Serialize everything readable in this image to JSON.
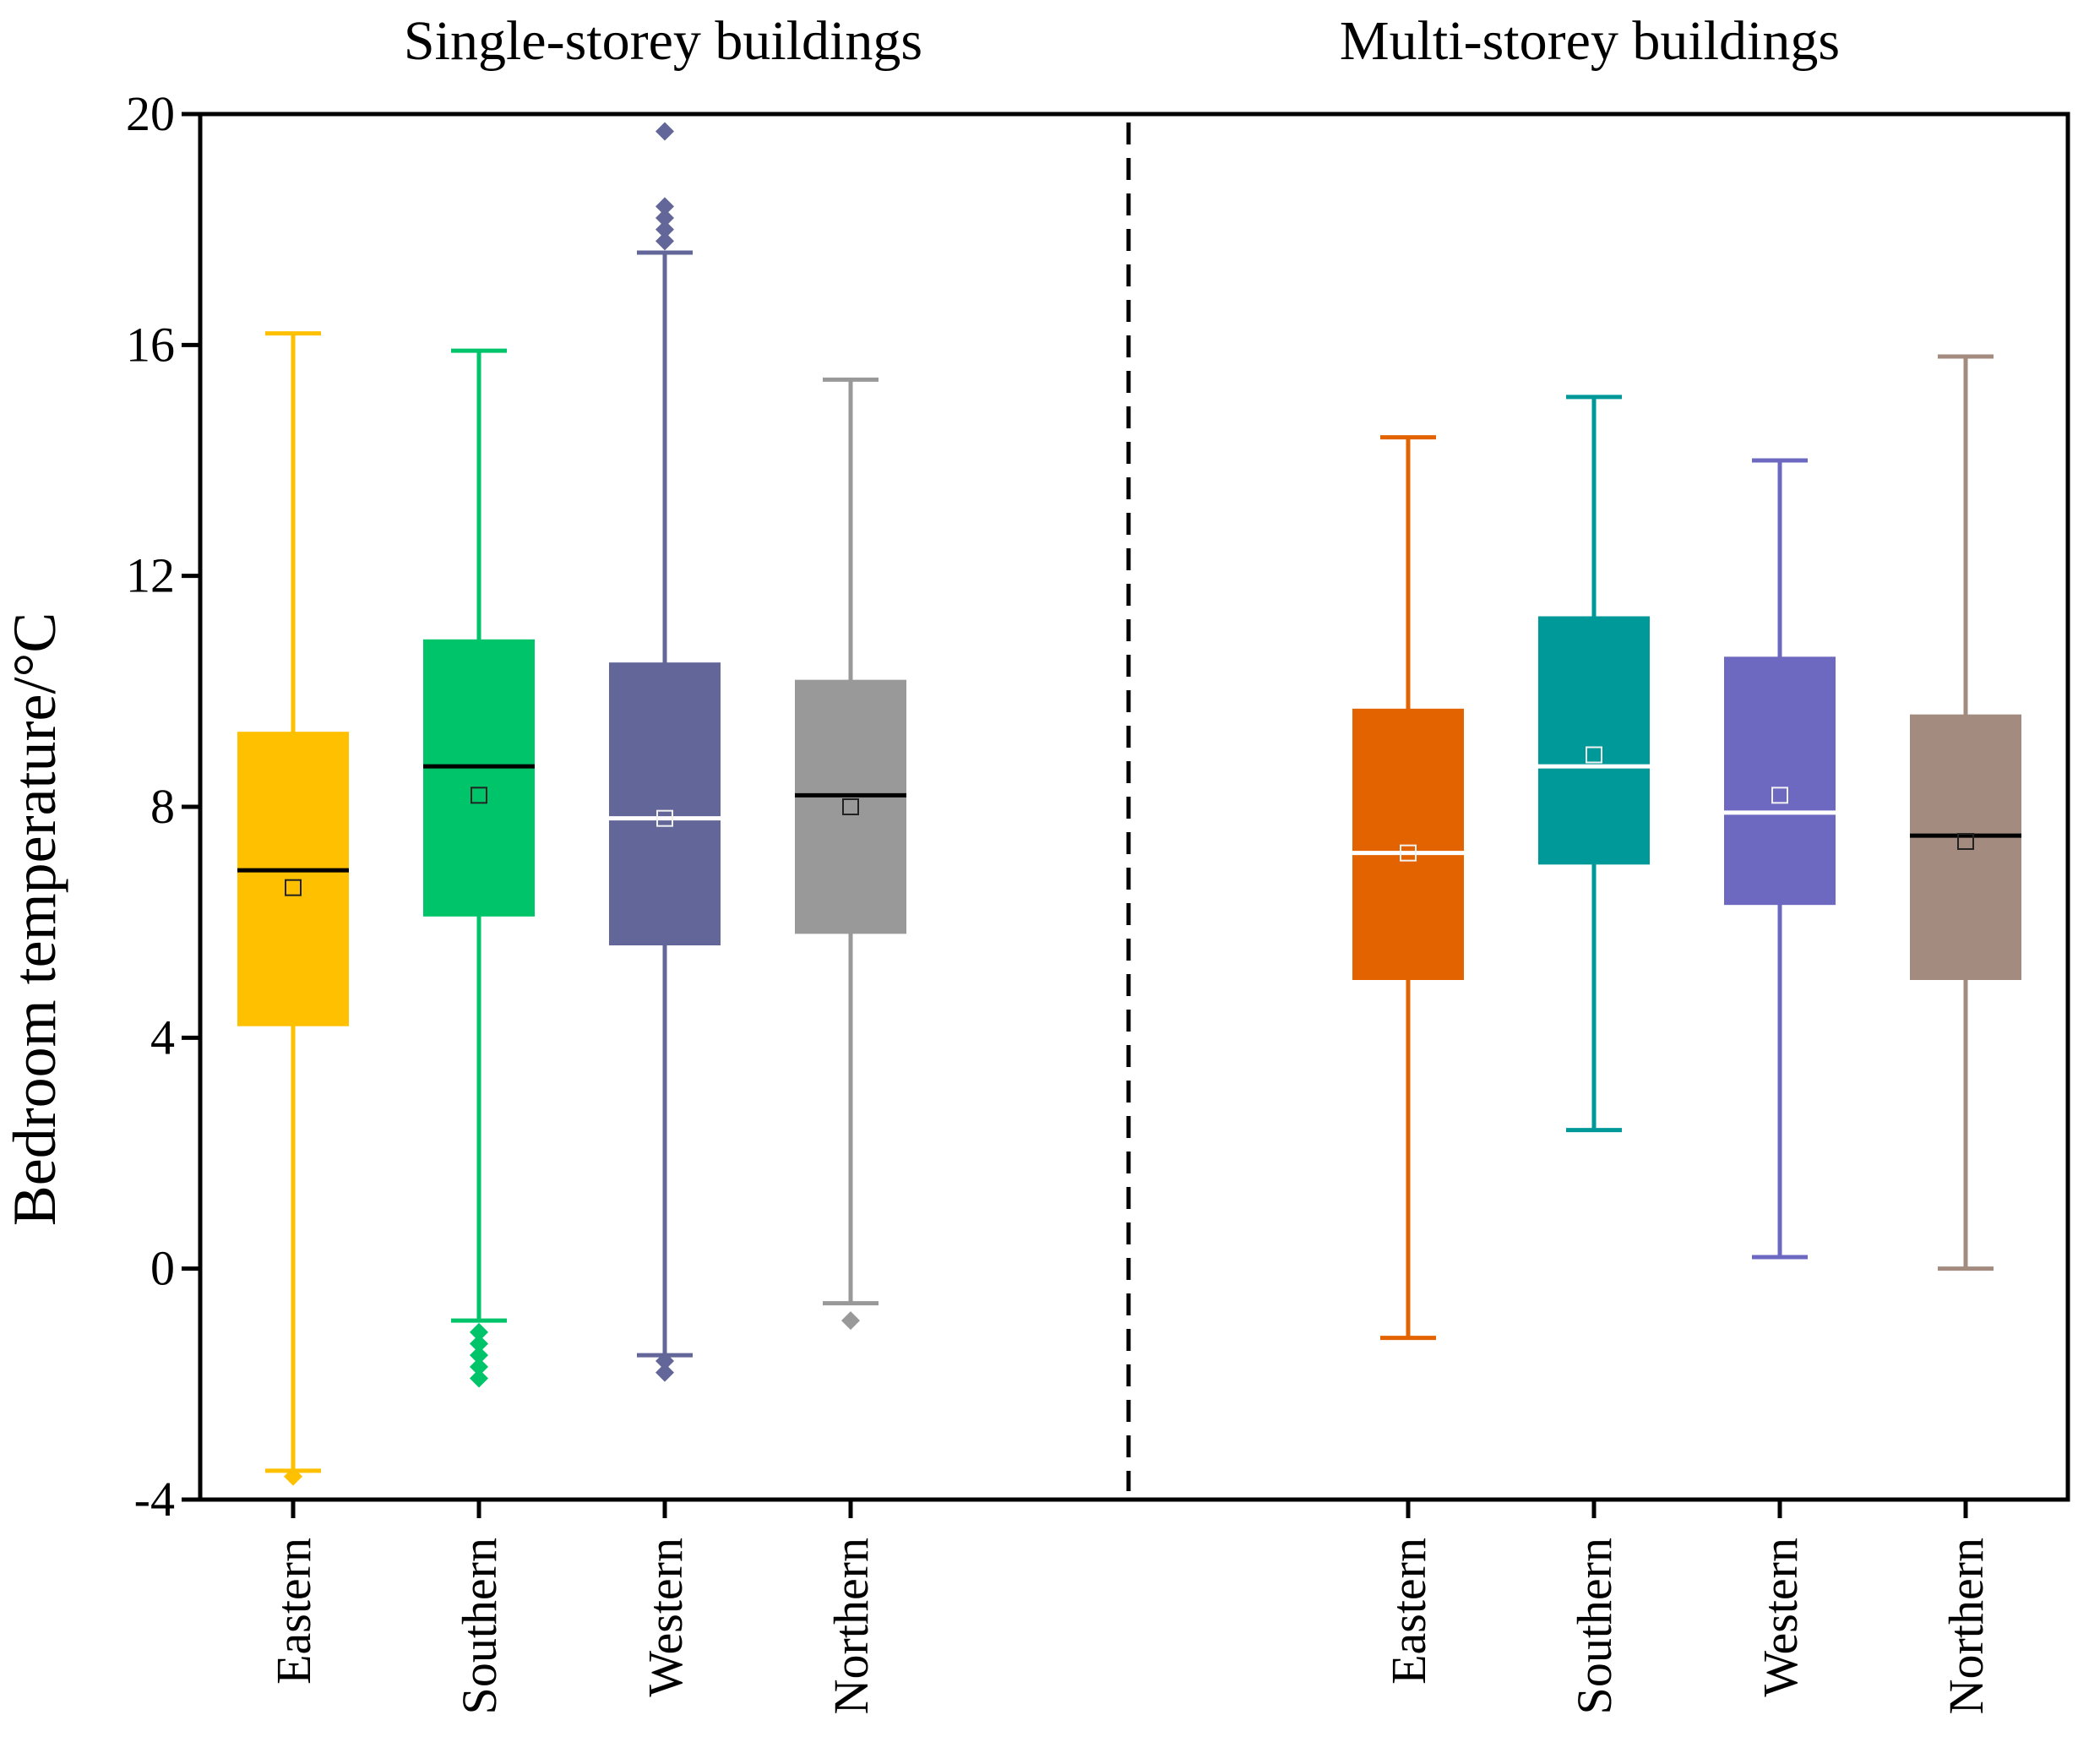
{
  "chart_data": {
    "type": "box",
    "ylabel": "Bedroom temperature/°C",
    "ylim": [
      -4,
      20
    ],
    "yticks": [
      -4,
      0,
      4,
      8,
      12,
      16,
      20
    ],
    "grid": false,
    "groups": [
      {
        "title": "Single-storey buildings",
        "boxes": [
          {
            "category": "Eastern",
            "color": "#FFC000",
            "median_color": "#000000",
            "whisker_low": -3.5,
            "q1": 4.2,
            "median": 6.9,
            "q3": 9.3,
            "whisker_high": 16.2,
            "mean": 6.6,
            "outliers": [
              -3.6
            ]
          },
          {
            "category": "Southern",
            "color": "#00C46A",
            "median_color": "#000000",
            "whisker_low": -0.9,
            "q1": 6.1,
            "median": 8.7,
            "q3": 10.9,
            "whisker_high": 15.9,
            "mean": 8.2,
            "outliers": [
              -1.1,
              -1.3,
              -1.5,
              -1.7,
              -1.9
            ]
          },
          {
            "category": "Western",
            "color": "#636698",
            "median_color": "#FFFFFF",
            "whisker_low": -1.5,
            "q1": 5.6,
            "median": 7.8,
            "q3": 10.5,
            "whisker_high": 17.6,
            "mean": 7.8,
            "outliers": [
              19.7,
              18.4,
              18.2,
              18.0,
              17.8,
              -1.6,
              -1.8
            ]
          },
          {
            "category": "Northern",
            "color": "#999999",
            "median_color": "#000000",
            "whisker_low": -0.6,
            "q1": 5.8,
            "median": 8.2,
            "q3": 10.2,
            "whisker_high": 15.4,
            "mean": 8.0,
            "outliers": [
              -0.9
            ]
          }
        ]
      },
      {
        "title": "Multi-storey buildings",
        "boxes": [
          {
            "category": "Eastern",
            "color": "#E36300",
            "median_color": "#FFFFFF",
            "whisker_low": -1.2,
            "q1": 5.0,
            "median": 7.2,
            "q3": 9.7,
            "whisker_high": 14.4,
            "mean": 7.2,
            "outliers": []
          },
          {
            "category": "Southern",
            "color": "#009999",
            "median_color": "#FFFFFF",
            "whisker_low": 2.4,
            "q1": 7.0,
            "median": 8.7,
            "q3": 11.3,
            "whisker_high": 15.1,
            "mean": 8.9,
            "outliers": []
          },
          {
            "category": "Western",
            "color": "#6D69C0",
            "median_color": "#FFFFFF",
            "whisker_low": 0.2,
            "q1": 6.3,
            "median": 7.9,
            "q3": 10.6,
            "whisker_high": 14.0,
            "mean": 8.2,
            "outliers": []
          },
          {
            "category": "Northern",
            "color": "#A38B7F",
            "median_color": "#000000",
            "whisker_low": 0.0,
            "q1": 5.0,
            "median": 7.5,
            "q3": 9.6,
            "whisker_high": 15.8,
            "mean": 7.4,
            "outliers": []
          }
        ]
      }
    ],
    "divider": "dashed vertical line between groups"
  }
}
